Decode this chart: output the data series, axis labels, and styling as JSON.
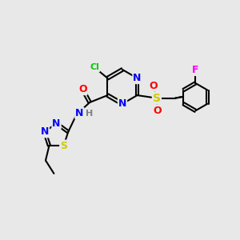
{
  "bg_color": "#e8e8e8",
  "bond_color": "#000000",
  "bond_width": 1.5,
  "atom_colors": {
    "N": "#0000ff",
    "O": "#ff0000",
    "S": "#cccc00",
    "Cl": "#00cc00",
    "F": "#ff00ff",
    "C": "#000000",
    "H": "#808080"
  },
  "font_size": 8,
  "fig_size": [
    3.0,
    3.0
  ],
  "dpi": 100
}
